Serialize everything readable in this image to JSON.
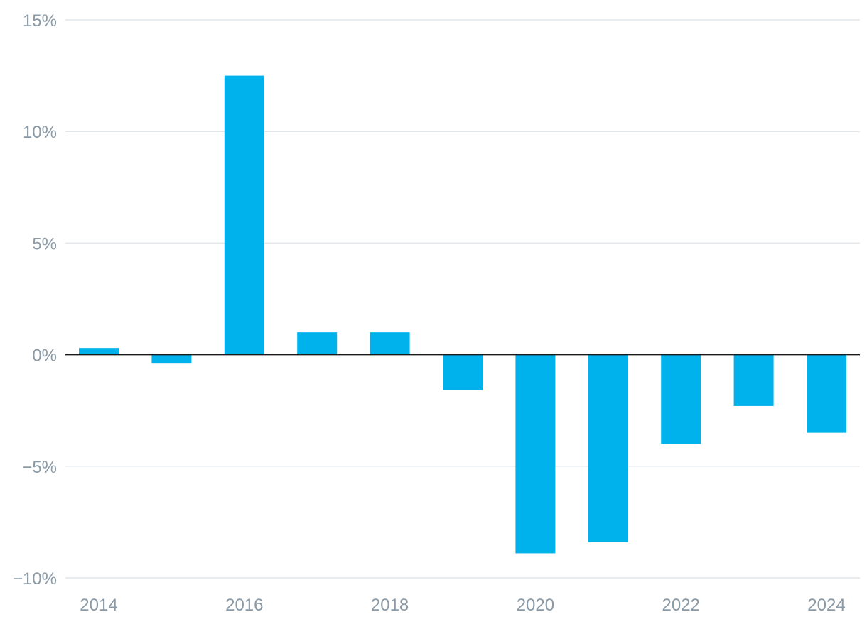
{
  "chart_data": {
    "type": "bar",
    "categories": [
      "2014",
      "2015",
      "2016",
      "2017",
      "2018",
      "2019",
      "2020",
      "2021",
      "2022",
      "2023",
      "2024"
    ],
    "values": [
      0.3,
      -0.4,
      12.5,
      1.0,
      1.0,
      -1.6,
      -8.9,
      -8.4,
      -4.0,
      -2.3,
      -3.5
    ],
    "title": "",
    "xlabel": "",
    "ylabel": "",
    "ylim": [
      -10,
      15
    ],
    "y_ticks": [
      15,
      10,
      5,
      0,
      -5,
      -10
    ],
    "y_tick_labels": [
      "15%",
      "10%",
      "5%",
      "0%",
      "−5%",
      "−10%"
    ],
    "x_tick_labels": [
      "2014",
      "2016",
      "2018",
      "2020",
      "2022",
      "2024"
    ],
    "grid": true,
    "bar_color": "#00b2ec",
    "grid_color": "#e2e6ea",
    "zero_line_color": "#1a1a1a",
    "tick_label_color": "#8a9aa6"
  }
}
